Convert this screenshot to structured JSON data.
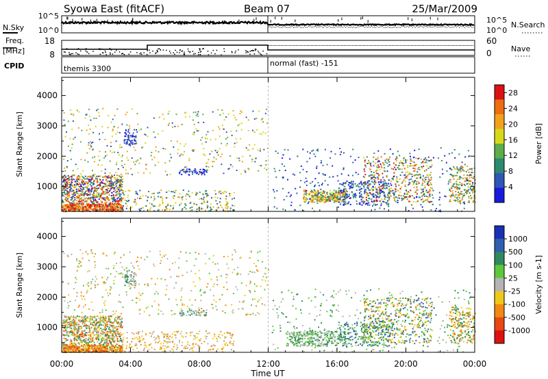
{
  "header": {
    "station": "Syowa East (fitACF)",
    "beam": "Beam 07",
    "date": "25/Mar/2009"
  },
  "strip_labels": {
    "nsky": "N.Sky",
    "nsky_ticks": [
      "10^5",
      "10^0"
    ],
    "nsearch": "N.Search",
    "nsearch_ticks": [
      "10^5",
      "10^0"
    ],
    "freq": "Freq.",
    "freq_unit": "[MHz]",
    "freq_ticks": [
      "18",
      "8"
    ],
    "nave": "Nave",
    "nave_ticks": [
      "60",
      "0"
    ],
    "cpid": "CPID",
    "cpid_left": "themis 3300",
    "cpid_right": "normal (fast) -151"
  },
  "chart_data": [
    {
      "type": "heatmap",
      "name": "power",
      "ylabel": "Slant Range [km]",
      "xlabel": "Time UT",
      "x_ticks": [
        "00:00",
        "04:00",
        "08:00",
        "12:00",
        "16:00",
        "20:00",
        "00:00"
      ],
      "x_range_hours": [
        0,
        24
      ],
      "y_ticks": [
        1000,
        2000,
        3000,
        4000
      ],
      "ylim": [
        180,
        4600
      ],
      "colorbar": {
        "label": "Power [dB]",
        "ticks": [
          4,
          8,
          12,
          16,
          20,
          24,
          28
        ],
        "range": [
          0,
          30
        ],
        "colors": [
          "#1a1adc",
          "#2f57b8",
          "#2d8a6e",
          "#5cae4a",
          "#d8d81a",
          "#f0a31a",
          "#ee6d12",
          "#dc1212"
        ]
      }
    },
    {
      "type": "heatmap",
      "name": "velocity",
      "ylabel": "Slant Range [km]",
      "xlabel": "Time UT",
      "x_ticks": [
        "00:00",
        "04:00",
        "08:00",
        "12:00",
        "16:00",
        "20:00",
        "00:00"
      ],
      "x_range_hours": [
        0,
        24
      ],
      "y_ticks": [
        1000,
        2000,
        3000,
        4000
      ],
      "ylim": [
        180,
        4600
      ],
      "colorbar": {
        "label": "Velocity [m s-1]",
        "ticks": [
          "1000",
          "500",
          "100",
          "25",
          "-25",
          "-100",
          "-500",
          "-1000"
        ],
        "colors": [
          "#1a2fb4",
          "#2f5fb0",
          "#2f8a5e",
          "#5ec83c",
          "#b4b4b4",
          "#f0c81a",
          "#f08a12",
          "#e84812",
          "#dc1212"
        ]
      }
    }
  ]
}
